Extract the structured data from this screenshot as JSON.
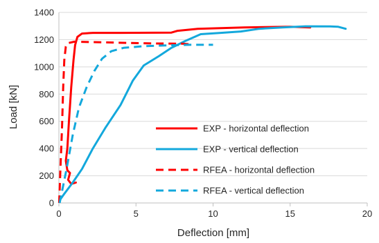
{
  "chart_data": {
    "type": "line",
    "xlabel": "Deflection [mm]",
    "ylabel": "Load [kN]",
    "xlim": [
      0,
      20
    ],
    "ylim": [
      0,
      1400
    ],
    "x_ticks": [
      "0",
      "5",
      "10",
      "15",
      "20"
    ],
    "y_ticks": [
      "0",
      "200",
      "400",
      "600",
      "800",
      "1000",
      "1200",
      "1400"
    ],
    "grid": "horizontal",
    "legend_position": "lower-right inside plot",
    "series": [
      {
        "name": "EXP - horizontal deflection",
        "color": "#ff0000",
        "dash": "solid",
        "points": [
          [
            1.1,
            150
          ],
          [
            0.8,
            140
          ],
          [
            0.6,
            170
          ],
          [
            0.72,
            220
          ],
          [
            0.55,
            240
          ],
          [
            0.45,
            310
          ],
          [
            0.55,
            400
          ],
          [
            0.65,
            600
          ],
          [
            0.8,
            850
          ],
          [
            0.95,
            1050
          ],
          [
            1.05,
            1160
          ],
          [
            1.2,
            1220
          ],
          [
            1.5,
            1245
          ],
          [
            2.2,
            1250
          ],
          [
            4,
            1250
          ],
          [
            7.3,
            1252
          ],
          [
            7.7,
            1265
          ],
          [
            9,
            1280
          ],
          [
            12,
            1290
          ],
          [
            15,
            1295
          ],
          [
            16.3,
            1290
          ]
        ]
      },
      {
        "name": "EXP - vertical deflection",
        "color": "#13a8dc",
        "dash": "solid",
        "points": [
          [
            0.05,
            20
          ],
          [
            0.3,
            60
          ],
          [
            0.9,
            150
          ],
          [
            1.5,
            250
          ],
          [
            2.2,
            400
          ],
          [
            3,
            550
          ],
          [
            4,
            720
          ],
          [
            4.8,
            900
          ],
          [
            5.5,
            1010
          ],
          [
            6.5,
            1080
          ],
          [
            7.3,
            1140
          ],
          [
            8.2,
            1190
          ],
          [
            9.2,
            1240
          ],
          [
            10.5,
            1250
          ],
          [
            11.8,
            1260
          ],
          [
            13,
            1280
          ],
          [
            14.5,
            1290
          ],
          [
            16,
            1298
          ],
          [
            17.6,
            1297
          ],
          [
            18.1,
            1295
          ],
          [
            18.6,
            1280
          ]
        ]
      },
      {
        "name": "RFEA - horizontal deflection",
        "color": "#ff0000",
        "dash": "dashed",
        "points": [
          [
            0.02,
            0
          ],
          [
            0.1,
            250
          ],
          [
            0.2,
            550
          ],
          [
            0.28,
            850
          ],
          [
            0.35,
            1050
          ],
          [
            0.45,
            1150
          ],
          [
            0.6,
            1175
          ],
          [
            1,
            1185
          ],
          [
            3,
            1180
          ],
          [
            6,
            1172
          ],
          [
            8,
            1170
          ],
          [
            8.6,
            1165
          ]
        ]
      },
      {
        "name": "RFEA - vertical deflection",
        "color": "#13a8dc",
        "dash": "dashed",
        "points": [
          [
            0.05,
            0
          ],
          [
            0.5,
            250
          ],
          [
            0.9,
            500
          ],
          [
            1.3,
            700
          ],
          [
            1.8,
            850
          ],
          [
            2.3,
            970
          ],
          [
            2.8,
            1060
          ],
          [
            3.4,
            1115
          ],
          [
            4.2,
            1140
          ],
          [
            5.5,
            1152
          ],
          [
            7,
            1158
          ],
          [
            8.5,
            1162
          ],
          [
            10,
            1162
          ]
        ]
      }
    ]
  }
}
